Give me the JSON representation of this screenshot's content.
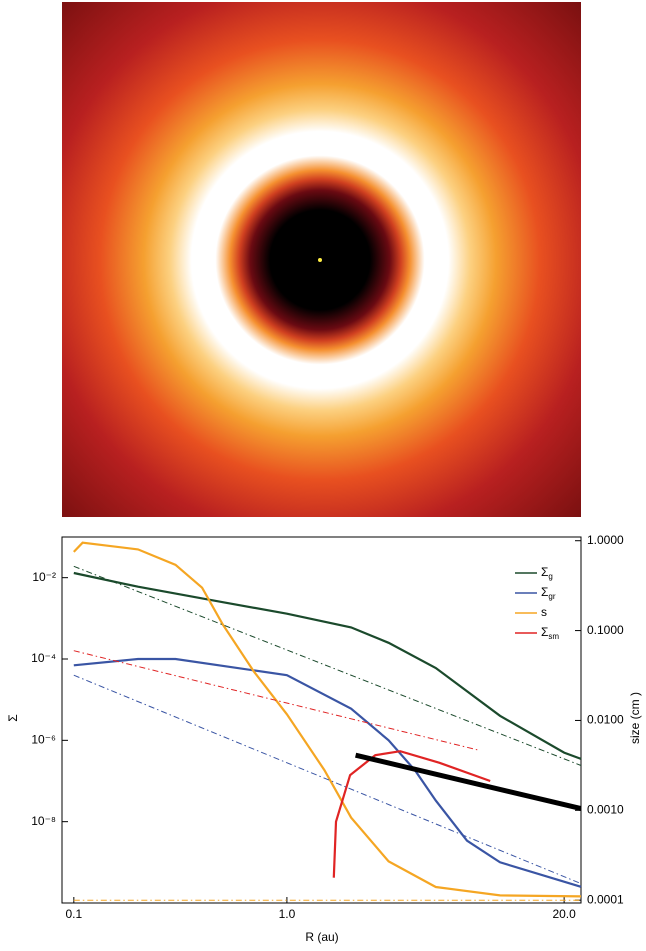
{
  "chart_data": {
    "type": "line",
    "xlabel": "R (au)",
    "ylabel": "Σ",
    "y2label": "size (cm )",
    "xlog": true,
    "ylog": true,
    "y2log": true,
    "xlim": [
      0.088,
      24
    ],
    "ylim": [
      1e-10,
      0.1
    ],
    "y2lim": [
      9.3e-05,
      1.1
    ],
    "xticks": [
      0.1,
      {
        "value": 1,
        "label": "1.0"
      },
      {
        "value": 20,
        "label": "20.0"
      }
    ],
    "yticks": [
      {
        "value": 0.01,
        "label": "10⁻²"
      },
      {
        "value": 0.0001,
        "label": "10⁻⁴"
      },
      {
        "value": 1e-06,
        "label": "10⁻⁶"
      },
      {
        "value": 1e-08,
        "label": "10⁻⁸"
      }
    ],
    "y2ticks": [
      {
        "value": 1,
        "label": "1.0000"
      },
      {
        "value": 0.1,
        "label": "0.1000"
      },
      {
        "value": 0.01,
        "label": "0.0100"
      },
      {
        "value": 0.001,
        "label": "0.0010"
      },
      {
        "value": 0.0001,
        "label": "0.0001"
      }
    ],
    "legend": "upper right",
    "series": [
      {
        "name": "Σg",
        "color": "#1b4a2c",
        "x": [
          0.1,
          0.2,
          0.5,
          1,
          2,
          3,
          5,
          10,
          20,
          24
        ],
        "values": [
          0.013,
          0.006,
          0.0025,
          0.0013,
          0.0006,
          0.00025,
          6e-05,
          4e-06,
          5e-07,
          3.5e-07
        ]
      },
      {
        "name": "Σgr",
        "color": "#3a55a4",
        "x": [
          0.1,
          0.2,
          0.3,
          1,
          2,
          3,
          4,
          5,
          7,
          10,
          24
        ],
        "values": [
          7e-05,
          0.0001,
          0.0001,
          4e-05,
          6e-06,
          1e-06,
          1.8e-07,
          3.3e-08,
          3.4e-09,
          1e-09,
          2.5e-10
        ]
      },
      {
        "name": "s",
        "color": "#f5a623",
        "axis": "y2",
        "x": [
          0.1,
          0.11,
          0.2,
          0.3,
          0.4,
          0.5,
          0.7,
          1,
          1.5,
          2,
          3,
          5,
          10,
          24
        ],
        "values": [
          0.75,
          0.95,
          0.8,
          0.54,
          0.3,
          0.117,
          0.035,
          0.0117,
          0.0028,
          0.00083,
          0.00027,
          0.00014,
          0.000113,
          0.00011
        ]
      },
      {
        "name": "Σsm",
        "color": "#e02424",
        "x": [
          1.66,
          1.7,
          1.98,
          2.6,
          3.4,
          5.2,
          9
        ],
        "values": [
          4.2e-10,
          1e-08,
          1.4e-07,
          4.3e-07,
          5.4e-07,
          2.8e-07,
          1e-07
        ]
      },
      {
        "color": "#000000",
        "width": 5,
        "x": [
          2.1,
          24
        ],
        "values": [
          4.3e-07,
          2.1e-08
        ]
      },
      {
        "color": "#1b4a2c",
        "dash": true,
        "x": [
          0.1,
          24
        ],
        "values": [
          0.019,
          2.4e-07
        ]
      },
      {
        "color": "#e02424",
        "dash": true,
        "x": [
          0.1,
          8
        ],
        "values": [
          0.00016,
          5.7e-07
        ]
      },
      {
        "color": "#3a55a4",
        "dash": true,
        "x": [
          0.1,
          24
        ],
        "values": [
          4e-05,
          3e-10
        ]
      },
      {
        "color": "#f5a623",
        "dash": true,
        "axis": "y2",
        "x": [
          0.1,
          24
        ],
        "values": [
          0.0001,
          0.0001
        ]
      }
    ]
  }
}
